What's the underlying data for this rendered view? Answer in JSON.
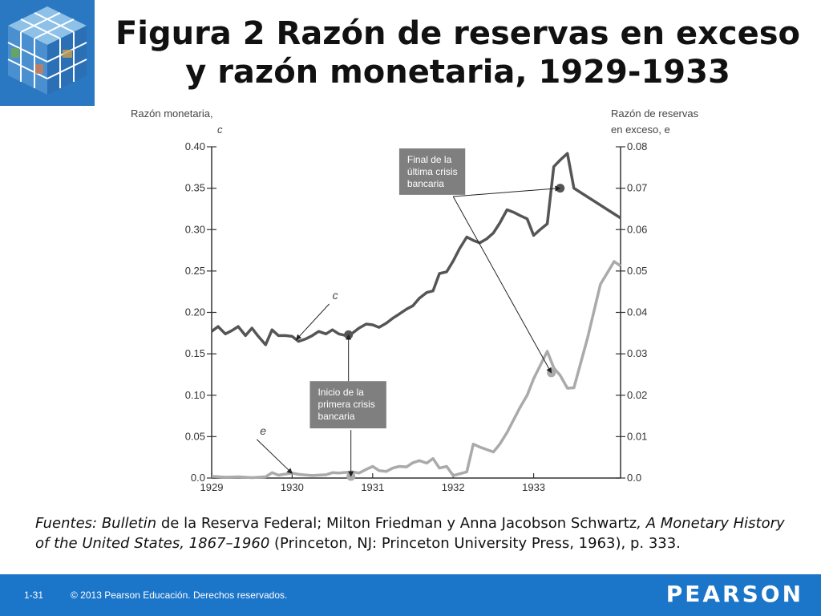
{
  "slide": {
    "title_line1": "Figura 2  Razón de reservas en exceso",
    "title_line2": "y razón monetaria, 1929-1933",
    "logo_icon": "rubik-cube-photo-icon"
  },
  "sources": {
    "label": "Fuentes:",
    "part1": "Bulletin",
    "part2": " de la Reserva Federal; Milton Friedman y Anna Jacobson Schwartz",
    "part3": ", A Monetary History of the United States, 1867–1960",
    "part4": " (Princeton, NJ: Princeton University Press, 1963), p. 333."
  },
  "footer": {
    "page": "1-31",
    "copyright": "© 2013 Pearson Educación. Derechos reservados.",
    "brand": "PEARSON",
    "color": "#1b75c9"
  },
  "chart_data": {
    "type": "line",
    "left_axis_label_line1": "Razón monetaria,",
    "left_axis_label_line2": "c",
    "right_axis_label_line1": "Razón de reservas",
    "right_axis_label_line2": "en exceso, e",
    "left_ticks": [
      "0.40",
      "0.35",
      "0.30",
      "0.25",
      "0.20",
      "0.15",
      "0.10",
      "0.05",
      "0.0"
    ],
    "left_tick_values": [
      0.4,
      0.35,
      0.3,
      0.25,
      0.2,
      0.15,
      0.1,
      0.05,
      0.0
    ],
    "right_ticks": [
      "0.08",
      "0.07",
      "0.06",
      "0.05",
      "0.04",
      "0.03",
      "0.02",
      "0.01",
      "0.0"
    ],
    "right_tick_values": [
      0.08,
      0.07,
      0.06,
      0.05,
      0.04,
      0.03,
      0.02,
      0.01,
      0.0
    ],
    "x_ticks": [
      "1929",
      "1930",
      "1931",
      "1932",
      "1933"
    ],
    "x_tick_values": [
      1929,
      1930,
      1931,
      1932,
      1933
    ],
    "xlim": [
      1929,
      1934.08
    ],
    "ylim_left": [
      0.0,
      0.4
    ],
    "ylim_right": [
      0.0,
      0.08
    ],
    "series": [
      {
        "name": "c",
        "axis": "left",
        "color": "#555555",
        "x": [
          1929.0,
          1929.08,
          1929.17,
          1929.25,
          1929.33,
          1929.42,
          1929.5,
          1929.58,
          1929.67,
          1929.75,
          1929.83,
          1929.92,
          1930.0,
          1930.08,
          1930.17,
          1930.25,
          1930.33,
          1930.42,
          1930.5,
          1930.58,
          1930.67,
          1930.75,
          1930.83,
          1930.92,
          1931.0,
          1931.08,
          1931.17,
          1931.25,
          1931.33,
          1931.42,
          1931.5,
          1931.58,
          1931.67,
          1931.75,
          1931.83,
          1931.92,
          1932.0,
          1932.08,
          1932.17,
          1932.25,
          1932.33,
          1932.42,
          1932.5,
          1932.58,
          1932.67,
          1932.75,
          1932.83,
          1932.92,
          1933.0,
          1933.08,
          1933.17,
          1933.25,
          1933.33,
          1933.42,
          1933.5,
          1934.08
        ],
        "values": [
          0.177,
          0.183,
          0.174,
          0.178,
          0.183,
          0.172,
          0.181,
          0.171,
          0.161,
          0.179,
          0.172,
          0.172,
          0.171,
          0.165,
          0.168,
          0.172,
          0.177,
          0.174,
          0.179,
          0.174,
          0.172,
          0.175,
          0.181,
          0.186,
          0.185,
          0.182,
          0.187,
          0.193,
          0.198,
          0.204,
          0.208,
          0.217,
          0.224,
          0.226,
          0.247,
          0.249,
          0.262,
          0.277,
          0.291,
          0.287,
          0.284,
          0.289,
          0.296,
          0.308,
          0.324,
          0.321,
          0.317,
          0.313,
          0.293,
          0.3,
          0.307,
          0.376,
          0.384,
          0.392,
          0.35,
          0.314
        ]
      },
      {
        "name": "e",
        "axis": "right",
        "color": "#aaaaaa",
        "x": [
          1929.0,
          1929.17,
          1929.33,
          1929.5,
          1929.67,
          1929.75,
          1929.83,
          1930.0,
          1930.08,
          1930.25,
          1930.42,
          1930.5,
          1930.58,
          1930.75,
          1930.83,
          1930.92,
          1931.0,
          1931.08,
          1931.17,
          1931.25,
          1931.33,
          1931.42,
          1931.5,
          1931.58,
          1931.67,
          1931.75,
          1931.83,
          1931.92,
          1932.0,
          1932.17,
          1932.25,
          1932.33,
          1932.5,
          1932.58,
          1932.67,
          1932.83,
          1932.92,
          1933.0,
          1933.17,
          1933.25,
          1933.33,
          1933.42,
          1933.5,
          1933.67,
          1933.83,
          1934.0,
          1934.08
        ],
        "values": [
          0.0004,
          0.0002,
          0.0003,
          0.0001,
          0.0003,
          0.0013,
          0.0007,
          0.0012,
          0.0009,
          0.0006,
          0.0008,
          0.0013,
          0.0012,
          0.0015,
          0.0012,
          0.0021,
          0.0028,
          0.0018,
          0.0016,
          0.0024,
          0.0028,
          0.0027,
          0.0037,
          0.0042,
          0.0036,
          0.0047,
          0.0024,
          0.0028,
          0.0006,
          0.0015,
          0.0082,
          0.0075,
          0.0063,
          0.0082,
          0.011,
          0.017,
          0.02,
          0.024,
          0.0306,
          0.0266,
          0.0248,
          0.0217,
          0.0218,
          0.0338,
          0.0468,
          0.0523,
          0.0512
        ]
      }
    ],
    "markers": [
      {
        "series": "c",
        "x": 1930.7,
        "value": 0.173
      },
      {
        "series": "c",
        "x": 1933.33,
        "value": 0.35
      },
      {
        "series": "e",
        "x": 1930.73,
        "value": 0.0004
      },
      {
        "series": "e",
        "x": 1933.22,
        "value": 0.0254
      }
    ],
    "series_labels": [
      {
        "text": "c",
        "series": "c",
        "x": 1930.5,
        "value": 0.216,
        "tx": 1930.05,
        "tv": 0.167
      },
      {
        "text": "e",
        "series": "e",
        "x": 1929.6,
        "value": 0.0105,
        "tx": 1930.0,
        "tv": 0.0011
      }
    ],
    "annotations": [
      {
        "lines": [
          "Final de la",
          "última crisis",
          "bancaria"
        ],
        "box_x": 1931.33,
        "box_value": 0.398,
        "box_right_x": 1932.15,
        "box_bottom": 0.342,
        "targets": [
          {
            "x": 1933.33,
            "value": 0.35,
            "ax": 1932.0,
            "av": 0.34
          },
          {
            "x": 1933.22,
            "value": 0.127,
            "ax": 1932.0,
            "av": 0.34
          }
        ]
      },
      {
        "lines": [
          "Inicio de la",
          "primera crisis",
          "bancaria"
        ],
        "box_x": 1930.22,
        "box_value": 0.117,
        "box_right_x": 1931.17,
        "box_bottom": 0.06,
        "targets": [
          {
            "x": 1930.7,
            "value": 0.173,
            "ax": 1930.7,
            "av": 0.117
          },
          {
            "x": 1930.73,
            "value": 0.002,
            "ax": 1930.73,
            "av": 0.058
          }
        ]
      }
    ],
    "grid": false,
    "legend": "none"
  }
}
